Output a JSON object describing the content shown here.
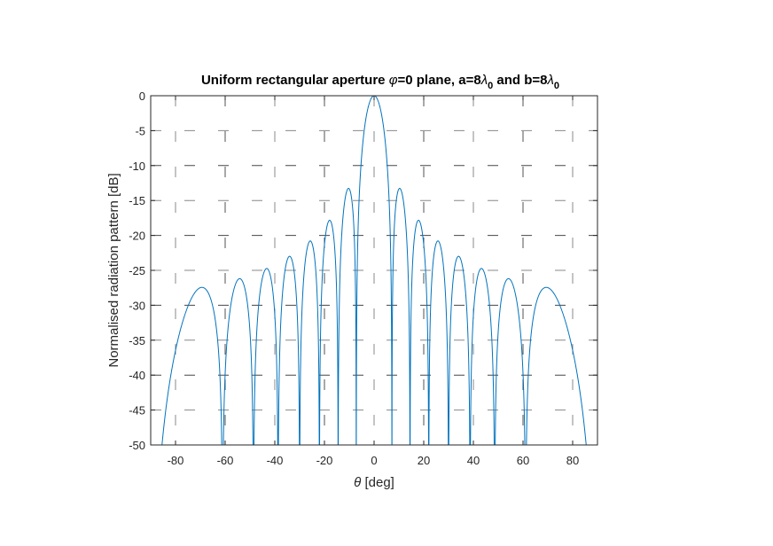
{
  "chart_data": {
    "type": "line",
    "title": "Uniform rectangular aperture φ=0 plane, a=8λ₀ and b=8λ₀",
    "title_parts": {
      "t1": "Uniform rectangular aperture ",
      "phi": "φ",
      "t2": "=0 plane, a=8",
      "lambda1": "λ",
      "sub1": "0",
      "t3": " and b=8",
      "lambda2": "λ",
      "sub2": "0"
    },
    "xlabel": "[deg]",
    "xlabel_symbol": "θ",
    "ylabel": "Normalised radiation pattern [dB]",
    "xlim": [
      -90,
      90
    ],
    "ylim": [
      -50,
      0
    ],
    "x_ticks": [
      -80,
      -60,
      -40,
      -20,
      0,
      20,
      40,
      60,
      80
    ],
    "x_tick_labels": [
      "-80",
      "-60",
      "-40",
      "-20",
      "0",
      "20",
      "40",
      "60",
      "80"
    ],
    "y_ticks": [
      0,
      -5,
      -10,
      -15,
      -20,
      -25,
      -30,
      -35,
      -40,
      -45,
      -50
    ],
    "y_tick_labels": [
      "0",
      "-5",
      "-10",
      "-15",
      "-20",
      "-25",
      "-30",
      "-35",
      "-40",
      "-45",
      "-50"
    ],
    "grid": true,
    "grid_style": "dashed",
    "series": [
      {
        "color": "#0072BD",
        "function": "normalised array factor 20*log10(|sin(pi*a*sin(theta))/(pi*a*sin(theta))|), a = 8",
        "aperture_a_wavelengths": 8,
        "x_range": [
          -90,
          90
        ],
        "clip_min_db": -50,
        "peak": {
          "x": 0,
          "y": 0
        },
        "sidelobes_approx": [
          {
            "x": 10.4,
            "y": -13.3
          },
          {
            "x": 17.6,
            "y": -17.9
          },
          {
            "x": 25.1,
            "y": -21.2
          },
          {
            "x": 33.2,
            "y": -23.8
          },
          {
            "x": 42.4,
            "y": -26.0
          },
          {
            "x": 53.8,
            "y": -28.3
          },
          {
            "x": 69.0,
            "y": -30.9
          }
        ]
      }
    ]
  }
}
